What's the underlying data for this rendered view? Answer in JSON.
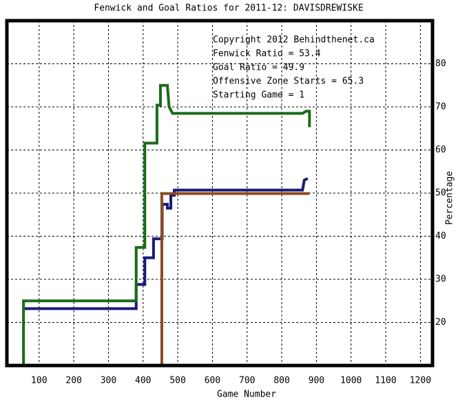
{
  "chart_data": {
    "type": "line",
    "title": "Fenwick and Goal Ratios for 2011-12: DAVISDREWISKE",
    "xlabel": "Game Number",
    "ylabel": "Percentage",
    "annotations": [
      "Copyright 2012 Behindthenet.ca",
      "Starting Game = 1"
    ],
    "xlim": [
      7,
      1235
    ],
    "ylim": [
      10,
      90
    ],
    "xticks": [
      100,
      200,
      300,
      400,
      500,
      600,
      700,
      800,
      900,
      1000,
      1100,
      1200
    ],
    "yticks": [
      20,
      30,
      40,
      50,
      60,
      70,
      80
    ],
    "grid": true,
    "series": [
      {
        "name": "Fenwick Ratio = 53.4",
        "color": "#1a1a7a",
        "x": [
          55,
          380,
          380,
          405,
          405,
          430,
          430,
          455,
          455,
          470,
          470,
          480,
          480,
          490,
          490,
          860,
          865,
          875
        ],
        "values": [
          23.2,
          23.2,
          28.8,
          28.8,
          35,
          35,
          39.4,
          39.4,
          47.4,
          47.4,
          46.5,
          46.5,
          49.5,
          49.5,
          50.7,
          50.7,
          53,
          53.4
        ]
      },
      {
        "name": "Goal Ratio = 49.9",
        "color": "#8b4a1e",
        "x": [
          454,
          454,
          880
        ],
        "values": [
          10,
          49.9,
          49.9
        ]
      },
      {
        "name": "Offensive Zone Starts = 65.3",
        "color": "#1a6b1a",
        "x": [
          55,
          55,
          380,
          380,
          405,
          405,
          440,
          440,
          450,
          450,
          470,
          475,
          485,
          860,
          870,
          880,
          880
        ],
        "values": [
          10,
          25,
          25,
          37.4,
          37.4,
          61.6,
          61.6,
          70.4,
          70.4,
          75,
          75,
          70,
          68.5,
          68.5,
          69,
          69,
          65.3
        ]
      }
    ]
  }
}
